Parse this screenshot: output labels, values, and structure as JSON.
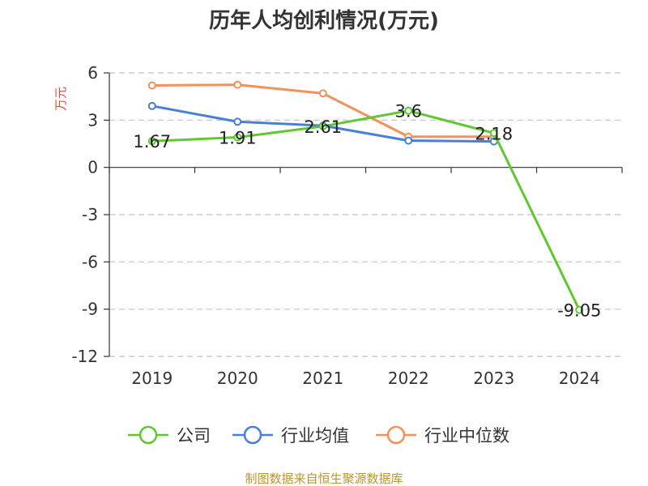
{
  "chart_data": {
    "type": "line",
    "title": "历年人均创利情况(万元)",
    "ylabel": "万元",
    "xlabel": "",
    "categories": [
      "2019",
      "2020",
      "2021",
      "2022",
      "2023",
      "2024"
    ],
    "ylim": [
      -12,
      6
    ],
    "yticks": [
      6,
      3,
      0,
      -3,
      -6,
      -9,
      -12
    ],
    "grid": true,
    "legend_position": "bottom",
    "series": [
      {
        "name": "公司",
        "color": "#5ec92e",
        "values": [
          1.67,
          1.91,
          2.61,
          3.6,
          2.18,
          -9.05
        ],
        "labels": [
          "1.67",
          "1.91",
          "2.61",
          "3.6",
          "2.18",
          "-9.05"
        ]
      },
      {
        "name": "行业均值",
        "color": "#4a7fd9",
        "values": [
          3.9,
          2.9,
          2.65,
          1.7,
          1.65,
          null
        ]
      },
      {
        "name": "行业中位数",
        "color": "#f5905a",
        "values": [
          5.2,
          5.25,
          4.7,
          1.95,
          1.95,
          null
        ]
      }
    ],
    "source": "制图数据来自恒生聚源数据库"
  }
}
